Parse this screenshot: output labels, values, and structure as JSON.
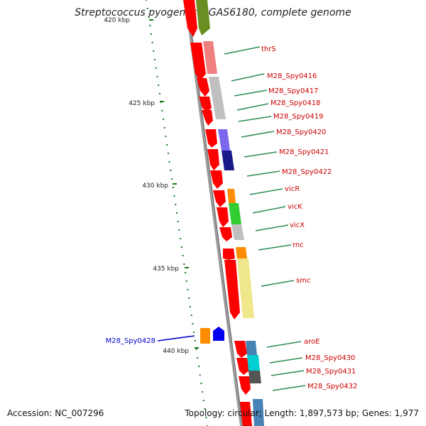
{
  "title": "Streptococcus pyogenes MGAS6180, complete genome",
  "ticks": [
    {
      "label": "420 kbp"
    },
    {
      "label": "425 kbp"
    },
    {
      "label": "430 kbp"
    },
    {
      "label": "435 kbp"
    },
    {
      "label": "440 kbp"
    }
  ],
  "genes_right": [
    {
      "label": "thrS"
    },
    {
      "label": "M28_Spy0416"
    },
    {
      "label": "M28_Spy0417"
    },
    {
      "label": "M28_Spy0418"
    },
    {
      "label": "M28_Spy0419"
    },
    {
      "label": "M28_Spy0420"
    },
    {
      "label": "M28_Spy0421"
    },
    {
      "label": "M28_Spy0422"
    },
    {
      "label": "vicR"
    },
    {
      "label": "vicK"
    },
    {
      "label": "vicX"
    },
    {
      "label": "rnc"
    },
    {
      "label": "smc"
    },
    {
      "label": "aroE"
    },
    {
      "label": "M28_Spy0430"
    },
    {
      "label": "M28_Spy0431"
    },
    {
      "label": "M28_Spy0432"
    }
  ],
  "genes_left": [
    {
      "label": "M28_Spy0428"
    }
  ],
  "footer": {
    "accession": "Accession: NC_007296",
    "topology": "Topology: circular; Length: 1,897,573 bp; Genes: 1,977"
  },
  "colors": {
    "cds": "#ff0000",
    "label_red": "#cc0000",
    "label_blue": "#0000cc",
    "backbone": "#888888",
    "tick": "#1a7a1a"
  }
}
